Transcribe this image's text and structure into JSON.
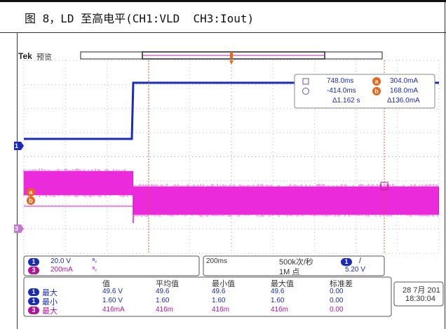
{
  "caption": "图 8，LD 至高电平(CH1:VLD  CH3:Iout)",
  "scope": {
    "brand": "Tek",
    "mode": "预览",
    "cursor": {
      "row1": {
        "time": "748.0ms",
        "value": "304.0mA",
        "marker": "a"
      },
      "row2": {
        "time": "-414.0ms",
        "value": "168.0mA",
        "marker": "b"
      },
      "row3": {
        "time": "Δ1.162 s",
        "value": "Δ136.0mA"
      }
    },
    "markers": {
      "ch1": "1",
      "ch3": "3",
      "a": "a",
      "b": "b"
    },
    "channels": [
      {
        "num": "1",
        "scale": "20.0 V",
        "sym": "ᴮᵥ"
      },
      {
        "num": "3",
        "scale": "200mA",
        "sym": "ᴮᵥ"
      }
    ],
    "timebase": "200ms",
    "sample_rate": "500k次/秒",
    "record_length": "1M 点",
    "trigger": {
      "channel": "1",
      "slope": "/",
      "level": "5.20 V"
    },
    "meas_headers": [
      "值",
      "平均值",
      "最小值",
      "最大值",
      "标准差"
    ],
    "measurements": [
      {
        "ch": "1",
        "label": "最大",
        "val": "49.6 V",
        "mean": "49.6",
        "min": "49.6",
        "max": "49.6",
        "std": "0.00"
      },
      {
        "ch": "1",
        "label": "最小",
        "val": "1.60 V",
        "mean": "1.60",
        "min": "1.60",
        "max": "1.60",
        "std": "0.00"
      },
      {
        "ch": "3",
        "label": "最大",
        "val": "416mA",
        "mean": "416m",
        "min": "416m",
        "max": "416m",
        "std": "0.00"
      }
    ],
    "date": "28 7月 201",
    "time": "18:30:04",
    "colors": {
      "ch1": "#1a2bb8",
      "ch3": "#e414d6",
      "cursor": "#e8651a"
    }
  }
}
